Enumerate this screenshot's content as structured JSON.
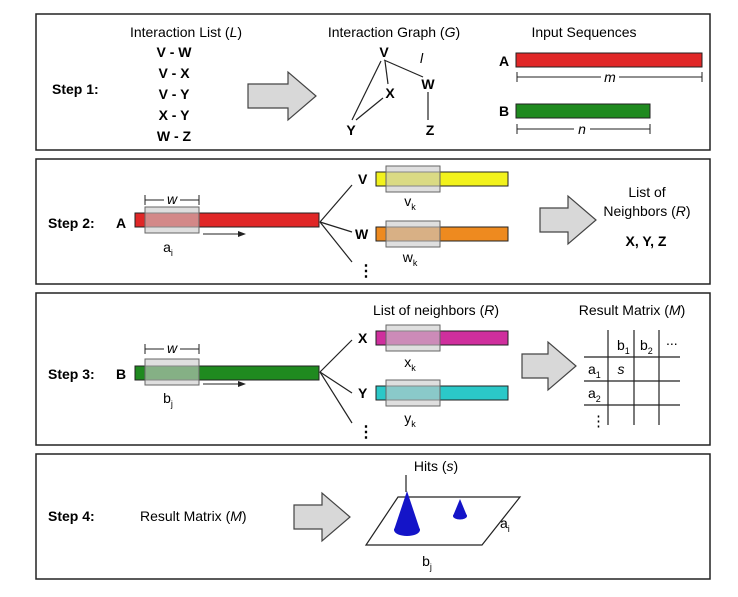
{
  "colors": {
    "seq_a": "#e02727",
    "seq_b": "#1f8a1f",
    "v": "#f2f21c",
    "w": "#ee8a1f",
    "x": "#cf2f9d",
    "y": "#2bc8c8",
    "window": "#c9c9c9",
    "cone": "#1414c8",
    "arrow_fill": "#d8d8d8"
  },
  "step1": {
    "label": "Step 1:",
    "list_title": "Interaction List (",
    "list_symbol": "L",
    "list_close": ")",
    "interactions": [
      "V - W",
      "V - X",
      "V - Y",
      "X - Y",
      "W - Z"
    ],
    "graph_title": "Interaction Graph (",
    "graph_symbol": "G",
    "graph_close": ")",
    "nodes": {
      "v": "V",
      "w": "W",
      "x": "X",
      "y": "Y",
      "z": "Z"
    },
    "edge_label": "l",
    "seq_title": "Input Sequences",
    "seq_a_label": "A",
    "seq_b_label": "B",
    "length_a": "m",
    "length_b": "n"
  },
  "step2": {
    "label": "Step 2:",
    "seq_label": "A",
    "window_label": "w",
    "pos_base": "a",
    "pos_sub": "i",
    "neighbor1": "V",
    "neighbor2": "W",
    "dots": "⋮",
    "sub1_base": "v",
    "sub1_sub": "k",
    "sub2_base": "w",
    "sub2_sub": "k",
    "result_line1": "List of",
    "result_line2a": "Neighbors (",
    "result_line2b": "R",
    "result_line2c": ")",
    "result_values": "X, Y, Z"
  },
  "step3": {
    "label": "Step 3:",
    "seq_label": "B",
    "window_label": "w",
    "pos_base": "b",
    "pos_sub": "j",
    "neighbors_title_a": "List of neighbors (",
    "neighbors_title_b": "R",
    "neighbors_title_c": ")",
    "neighbor1": "X",
    "neighbor2": "Y",
    "dots": "⋮",
    "sub1_base": "x",
    "sub1_sub": "k",
    "sub2_base": "y",
    "sub2_sub": "k",
    "matrix_title_a": "Result Matrix (",
    "matrix_title_b": "M",
    "matrix_title_c": ")",
    "col1_base": "b",
    "col1_sub": "1",
    "col2_base": "b",
    "col2_sub": "2",
    "col_more": "...",
    "row1_base": "a",
    "row1_sub": "1",
    "row2_base": "a",
    "row2_sub": "2",
    "cell_value": "s",
    "row_more": "⋮"
  },
  "step4": {
    "label": "Step 4:",
    "input_a": "Result Matrix (",
    "input_b": "M",
    "input_c": ")",
    "hits_a": "Hits (",
    "hits_b": "s",
    "hits_c": ")",
    "side_base": "a",
    "side_sub": "i",
    "bottom_base": "b",
    "bottom_sub": "j"
  }
}
